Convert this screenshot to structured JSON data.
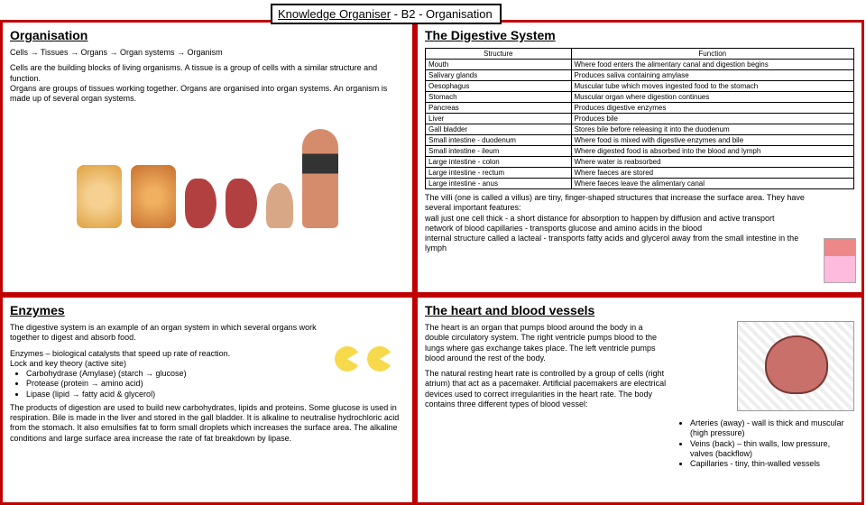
{
  "title": {
    "pre": "Knowledge Organiser",
    "rest": " - B2 - Organisation"
  },
  "organisation": {
    "heading": "Organisation",
    "chain": "Cells → Tissues → Organs → Organ systems → Organism",
    "para": "Cells are the building blocks of living organisms. A tissue is a group of cells with a similar structure and function.\nOrgans are groups of tissues working together. Organs are organised into organ systems. An organism is made up of several organ systems."
  },
  "digestive": {
    "heading": "The Digestive System",
    "col1": "Structure",
    "col2": "Function",
    "rows": [
      [
        "Mouth",
        "Where food enters the alimentary canal and digestion begins"
      ],
      [
        "Salivary glands",
        "Produces saliva containing amylase"
      ],
      [
        "Oesophagus",
        "Muscular tube which moves ingested food to the stomach"
      ],
      [
        "Stomach",
        "Muscular organ where digestion continues"
      ],
      [
        "Pancreas",
        "Produces digestive enzymes"
      ],
      [
        "Liver",
        "Produces bile"
      ],
      [
        "Gall bladder",
        "Stores bile before releasing it into the duodenum"
      ],
      [
        "Small intestine - duodenum",
        "Where food is mixed with digestive enzymes and bile"
      ],
      [
        "Small intestine - ileum",
        "Where digested food is absorbed into the blood and lymph"
      ],
      [
        "Large intestine - colon",
        "Where water is reabsorbed"
      ],
      [
        "Large intestine - rectum",
        "Where faeces are stored"
      ],
      [
        "Large intestine - anus",
        "Where faeces leave the alimentary canal"
      ]
    ],
    "villi": "The villi (one is called a villus) are tiny, finger-shaped structures that increase the surface area. They have several important features:\nwall just one cell thick - a short distance for absorption to happen by diffusion and active transport\nnetwork of blood capillaries - transports glucose and amino acids in the blood\ninternal structure called a lacteal - transports fatty acids and glycerol away from the small intestine in the lymph"
  },
  "enzymes": {
    "heading": "Enzymes",
    "p1": "The digestive system is an example of an organ system in which several organs work together to digest and absorb food.",
    "p2": "Enzymes – biological catalysts that speed up rate of reaction.\nLock and key theory (active site)",
    "bullets": [
      "Carbohydrase (Amylase) (starch → glucose)",
      "Protease (protein → amino acid)",
      "Lipase (lipid → fatty acid & glycerol)"
    ],
    "p3": "The products of digestion are used to build new carbohydrates, lipids and proteins. Some glucose is used in respiration. Bile is made in the liver and stored in the gall bladder. It is alkaline to neutralise hydrochloric acid from the stomach. It also emulsifies fat to form small droplets which increases the surface area. The alkaline conditions and large surface area increase the rate of fat breakdown by lipase."
  },
  "heart": {
    "heading": "The heart and blood vessels",
    "p1": "The heart is an organ that pumps blood around the body in a double circulatory system. The right ventricle pumps blood to the lungs where gas exchange takes place. The left ventricle pumps blood around the rest of the body.",
    "p2": "The natural resting heart rate is controlled by a group of cells (right atrium) that act as a pacemaker. Artificial pacemakers are electrical devices used to correct irregularities in the heart rate. The body contains three different types of blood vessel:",
    "bullets": [
      "Arteries (away) - wall is thick and muscular (high pressure)",
      "Veins (back) – thin walls, low pressure, valves (backflow)",
      "Capillaries - tiny, thin-walled vessels"
    ]
  }
}
